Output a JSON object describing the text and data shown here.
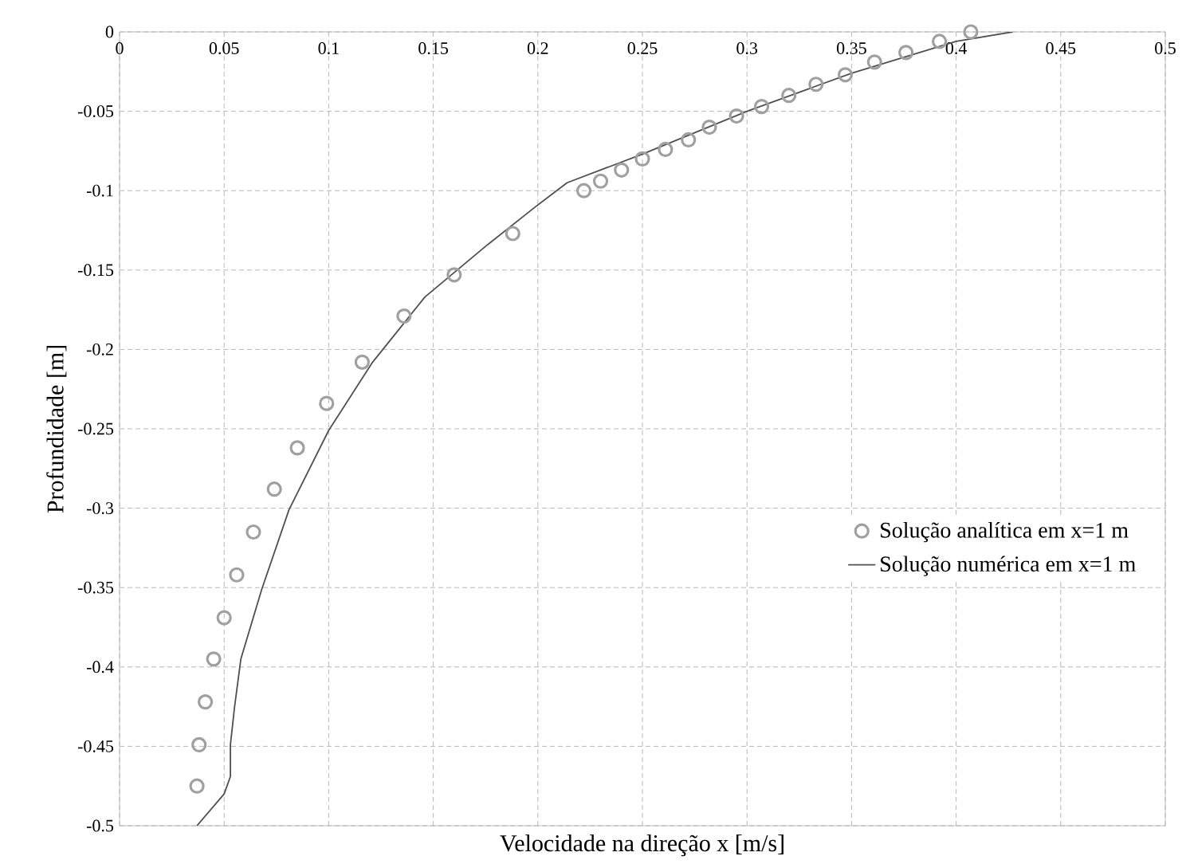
{
  "chart_data": {
    "type": "scatter",
    "xlabel": "Velocidade na direção x [m/s]",
    "ylabel": "Profundidade [m]",
    "xlim": [
      0,
      0.5
    ],
    "ylim": [
      -0.5,
      0
    ],
    "xticks": [
      0,
      0.05,
      0.1,
      0.15,
      0.2,
      0.25,
      0.3,
      0.35,
      0.4,
      0.45,
      0.5
    ],
    "yticks": [
      -0.5,
      -0.45,
      -0.4,
      -0.35,
      -0.3,
      -0.25,
      -0.2,
      -0.15,
      -0.1,
      -0.05,
      0
    ],
    "grid": true,
    "legend": "right",
    "series": [
      {
        "name": "Solução analítica em x=1 m",
        "marker": "circle",
        "color": "#a0a0a0",
        "x": [
          0.407,
          0.392,
          0.376,
          0.361,
          0.347,
          0.333,
          0.32,
          0.307,
          0.295,
          0.282,
          0.272,
          0.261,
          0.25,
          0.24,
          0.23,
          0.222,
          0.188,
          0.16,
          0.136,
          0.116,
          0.099,
          0.085,
          0.074,
          0.064,
          0.056,
          0.05,
          0.045,
          0.041,
          0.038,
          0.037
        ],
        "values": [
          0,
          -0.006,
          -0.013,
          -0.019,
          -0.027,
          -0.033,
          -0.04,
          -0.047,
          -0.053,
          -0.06,
          -0.068,
          -0.074,
          -0.08,
          -0.087,
          -0.094,
          -0.1,
          -0.127,
          -0.153,
          -0.179,
          -0.208,
          -0.234,
          -0.262,
          -0.288,
          -0.315,
          -0.342,
          -0.369,
          -0.395,
          -0.422,
          -0.449,
          -0.475
        ]
      },
      {
        "name": "Solução numérica em x=1 m",
        "type": "line",
        "marker": "none",
        "color": "#505050",
        "x": [
          0.037,
          0.05,
          0.053,
          0.053,
          0.055,
          0.058,
          0.068,
          0.081,
          0.1,
          0.121,
          0.146,
          0.176,
          0.199,
          0.214,
          0.25,
          0.3,
          0.35,
          0.4,
          0.427
        ],
        "values": [
          -0.5,
          -0.48,
          -0.469,
          -0.449,
          -0.425,
          -0.395,
          -0.351,
          -0.301,
          -0.251,
          -0.208,
          -0.167,
          -0.134,
          -0.11,
          -0.095,
          -0.077,
          -0.05,
          -0.026,
          -0.006,
          0
        ]
      }
    ]
  }
}
